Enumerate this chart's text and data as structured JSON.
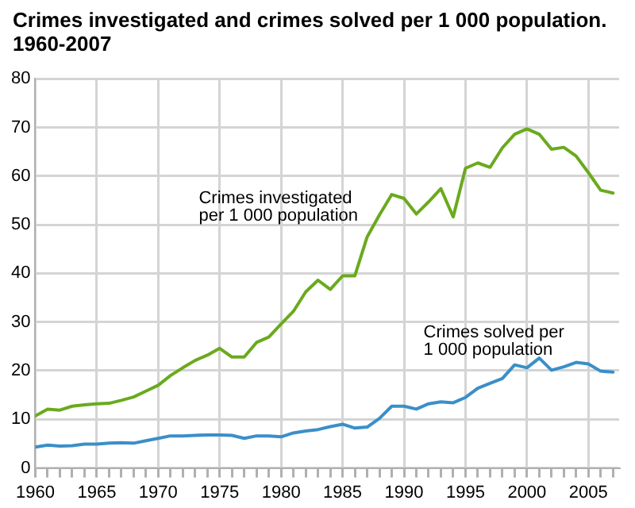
{
  "chart_data": {
    "type": "line",
    "title": "Crimes investigated and crimes solved per 1 000 population. 1960-2007",
    "x": [
      1960,
      1961,
      1962,
      1963,
      1964,
      1965,
      1966,
      1967,
      1968,
      1969,
      1970,
      1971,
      1972,
      1973,
      1974,
      1975,
      1976,
      1977,
      1978,
      1979,
      1980,
      1981,
      1982,
      1983,
      1984,
      1985,
      1986,
      1987,
      1988,
      1989,
      1990,
      1991,
      1992,
      1993,
      1994,
      1995,
      1996,
      1997,
      1998,
      1999,
      2000,
      2001,
      2002,
      2003,
      2004,
      2005,
      2006,
      2007
    ],
    "series": [
      {
        "name": "Crimes investigated per 1 000 population",
        "color": "#6aaa1e",
        "values": [
          10.7,
          12.1,
          11.9,
          12.7,
          13.0,
          13.2,
          13.3,
          13.9,
          14.6,
          15.8,
          17.0,
          19.0,
          20.6,
          22.1,
          23.2,
          24.6,
          22.8,
          22.8,
          25.8,
          26.9,
          29.6,
          32.2,
          36.2,
          38.6,
          36.7,
          39.5,
          39.5,
          47.5,
          52.0,
          56.2,
          55.4,
          52.2,
          54.7,
          57.4,
          51.6,
          61.6,
          62.7,
          61.8,
          65.8,
          68.6,
          69.7,
          68.6,
          65.5,
          65.9,
          64.1,
          60.7,
          57.1,
          56.5
        ]
      },
      {
        "name": "Crimes solved per 1 000 population",
        "color": "#3a8fc8",
        "values": [
          4.3,
          4.7,
          4.5,
          4.6,
          4.9,
          4.9,
          5.1,
          5.2,
          5.1,
          5.6,
          6.1,
          6.6,
          6.6,
          6.7,
          6.8,
          6.8,
          6.7,
          6.1,
          6.6,
          6.6,
          6.4,
          7.2,
          7.6,
          7.9,
          8.5,
          9.0,
          8.2,
          8.4,
          10.2,
          12.7,
          12.7,
          12.1,
          13.2,
          13.6,
          13.4,
          14.5,
          16.4,
          17.4,
          18.4,
          21.2,
          20.6,
          22.6,
          20.1,
          20.8,
          21.7,
          21.4,
          19.9,
          19.7
        ]
      }
    ],
    "xlim": [
      1960,
      2007.5
    ],
    "xticks": [
      1960,
      {
        "value": 1961,
        "label": null
      },
      {
        "value": 1962,
        "label": null
      },
      {
        "value": 1963,
        "label": null
      },
      {
        "value": 1964,
        "label": null
      },
      1965,
      {
        "value": 1966,
        "label": null
      },
      {
        "value": 1967,
        "label": null
      },
      {
        "value": 1968,
        "label": null
      },
      {
        "value": 1969,
        "label": null
      },
      1970,
      {
        "value": 1971,
        "label": null
      },
      {
        "value": 1972,
        "label": null
      },
      {
        "value": 1973,
        "label": null
      },
      {
        "value": 1974,
        "label": null
      },
      1975,
      {
        "value": 1976,
        "label": null
      },
      {
        "value": 1977,
        "label": null
      },
      {
        "value": 1978,
        "label": null
      },
      {
        "value": 1979,
        "label": null
      },
      1980,
      {
        "value": 1981,
        "label": null
      },
      {
        "value": 1982,
        "label": null
      },
      {
        "value": 1983,
        "label": null
      },
      {
        "value": 1984,
        "label": null
      },
      1985,
      {
        "value": 1986,
        "label": null
      },
      {
        "value": 1987,
        "label": null
      },
      {
        "value": 1988,
        "label": null
      },
      {
        "value": 1989,
        "label": null
      },
      1990,
      {
        "value": 1991,
        "label": null
      },
      {
        "value": 1992,
        "label": null
      },
      {
        "value": 1993,
        "label": null
      },
      {
        "value": 1994,
        "label": null
      },
      1995,
      {
        "value": 1996,
        "label": null
      },
      {
        "value": 1997,
        "label": null
      },
      {
        "value": 1998,
        "label": null
      },
      {
        "value": 1999,
        "label": null
      },
      2000,
      {
        "value": 2001,
        "label": null
      },
      {
        "value": 2002,
        "label": null
      },
      {
        "value": 2003,
        "label": null
      },
      {
        "value": 2004,
        "label": null
      },
      2005,
      {
        "value": 2006,
        "label": null
      },
      {
        "value": 2007,
        "label": null
      }
    ],
    "ylim": [
      0,
      80
    ],
    "yticks": [
      0,
      10,
      20,
      30,
      40,
      50,
      60,
      70,
      80
    ],
    "grid": true,
    "legend": false,
    "marker": "none",
    "line_style": "solid"
  }
}
